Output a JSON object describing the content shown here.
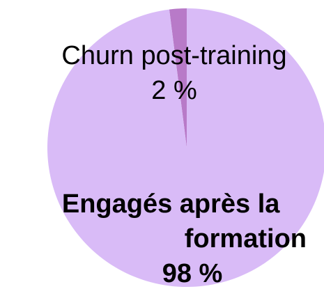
{
  "chart_data": {
    "type": "pie",
    "categories": [
      "Churn post-training",
      "Engagés après la formation"
    ],
    "values": [
      2,
      98
    ],
    "value_labels": [
      "2 %",
      "98 %"
    ],
    "colors": [
      "#b87ac8",
      "#d9bbf7"
    ]
  }
}
